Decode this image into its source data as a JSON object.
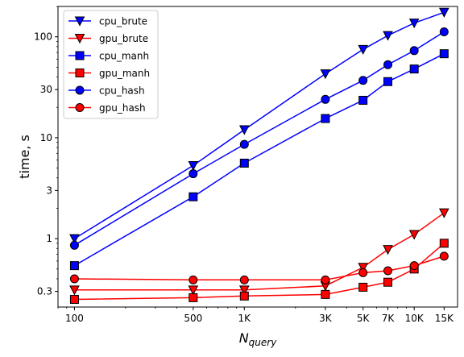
{
  "chart_data": {
    "type": "line",
    "title": "",
    "xlabel_base": "N",
    "xlabel_sub": "query",
    "ylabel": "time, s",
    "xscale": "log",
    "yscale": "log",
    "xlim": [
      80,
      18000
    ],
    "ylim": [
      0.21,
      200
    ],
    "x": [
      100,
      500,
      1000,
      3000,
      5000,
      7000,
      10000,
      15000
    ],
    "x_tick_labels": [
      "100",
      "500",
      "1K",
      "3K",
      "5K",
      "7K",
      "10K",
      "15K"
    ],
    "y_ticks": [
      0.3,
      1,
      3,
      10,
      30,
      100
    ],
    "y_tick_labels": [
      "0.3",
      "1",
      "3",
      "10",
      "30",
      "100"
    ],
    "legend_position": "top-left",
    "colors": {
      "cpu": "#0000ff",
      "gpu": "#ff0000"
    },
    "series": [
      {
        "name": "cpu_brute",
        "color": "#0000ff",
        "marker": "triangle-down",
        "x": [
          100,
          500,
          1000,
          3000,
          5000,
          7000,
          10000,
          15000
        ],
        "values": [
          1.0,
          5.3,
          12.0,
          43.0,
          75.0,
          103.0,
          137.0,
          175.0
        ]
      },
      {
        "name": "gpu_brute",
        "color": "#ff0000",
        "marker": "triangle-down",
        "x": [
          100,
          500,
          1000,
          3000,
          5000,
          7000,
          10000,
          15000
        ],
        "values": [
          0.31,
          0.31,
          0.31,
          0.34,
          0.52,
          0.78,
          1.1,
          1.8
        ]
      },
      {
        "name": "cpu_manh",
        "color": "#0000ff",
        "marker": "square",
        "x": [
          100,
          500,
          1000,
          3000,
          5000,
          7000,
          10000,
          15000
        ],
        "values": [
          0.54,
          2.6,
          5.6,
          15.5,
          23.5,
          36.0,
          48.0,
          68.0
        ]
      },
      {
        "name": "gpu_manh",
        "color": "#ff0000",
        "marker": "square",
        "x": [
          100,
          500,
          1000,
          3000,
          5000,
          7000,
          10000,
          15000
        ],
        "values": [
          0.25,
          0.26,
          0.27,
          0.28,
          0.33,
          0.37,
          0.5,
          0.9
        ]
      },
      {
        "name": "cpu_hash",
        "color": "#0000ff",
        "marker": "circle",
        "x": [
          100,
          500,
          1000,
          3000,
          5000,
          7000,
          10000,
          15000
        ],
        "values": [
          0.86,
          4.4,
          8.6,
          24.0,
          37.0,
          53.0,
          73.0,
          112.0
        ]
      },
      {
        "name": "gpu_hash",
        "color": "#ff0000",
        "marker": "circle",
        "x": [
          100,
          500,
          1000,
          3000,
          5000,
          7000,
          10000,
          15000
        ],
        "values": [
          0.4,
          0.39,
          0.39,
          0.39,
          0.46,
          0.48,
          0.54,
          0.67
        ]
      }
    ]
  }
}
